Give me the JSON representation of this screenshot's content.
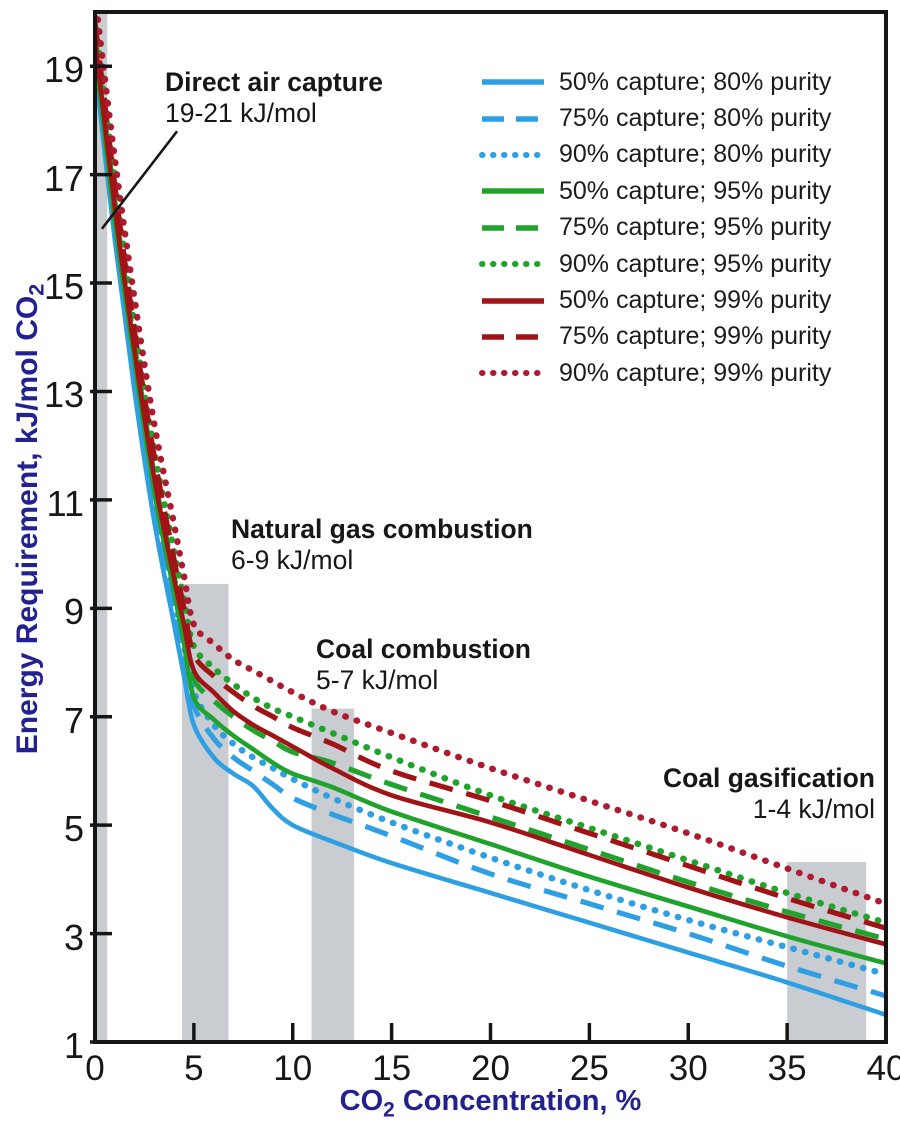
{
  "axes": {
    "x_title_prefix": "CO",
    "x_title_sub": "2",
    "x_title_suffix": " Concentration, %",
    "y_title_prefix": "Energy Requirement, kJ/mol CO",
    "y_title_sub": "2",
    "title_color": "#22218f",
    "tick_color": "#171717"
  },
  "annotations": {
    "direct_air": {
      "title": "Direct air capture",
      "range": "19-21 kJ/mol"
    },
    "natural_gas": {
      "title": "Natural gas combustion",
      "range": "6-9 kJ/mol"
    },
    "coal_combustion": {
      "title": "Coal combustion",
      "range": "5-7 kJ/mol"
    },
    "coal_gasification": {
      "title": "Coal gasification",
      "range": "1-4 kJ/mol"
    }
  },
  "chart_data": {
    "type": "line",
    "xlabel": "CO2 Concentration, %",
    "ylabel": "Energy Requirement, kJ/mol CO2",
    "xlim": [
      0,
      40
    ],
    "ylim": [
      1,
      20
    ],
    "x_ticks": [
      0,
      5,
      10,
      15,
      20,
      25,
      30,
      35,
      40
    ],
    "y_ticks": [
      1,
      3,
      5,
      7,
      9,
      11,
      13,
      15,
      17,
      19
    ],
    "grid": false,
    "legend_position": "top-right",
    "band_color": "#c9cdd2",
    "x": [
      0,
      1,
      2,
      3,
      4,
      4.5,
      5,
      6,
      7,
      8,
      9,
      10,
      12,
      15,
      20,
      25,
      30,
      35,
      40
    ],
    "series": [
      {
        "name": "50% capture; 80% purity",
        "color": "#2f9fe3",
        "style": "solid",
        "values": [
          19.0,
          15.8,
          13.0,
          10.6,
          8.7,
          7.75,
          6.85,
          6.25,
          5.95,
          5.72,
          5.3,
          5.0,
          4.7,
          4.3,
          3.75,
          3.2,
          2.65,
          2.1,
          1.5
        ]
      },
      {
        "name": "75% capture; 80% purity",
        "color": "#2f9fe3",
        "style": "dashed",
        "values": [
          19.2,
          16.0,
          13.25,
          10.85,
          8.95,
          8.05,
          7.2,
          6.6,
          6.25,
          6.0,
          5.75,
          5.5,
          5.2,
          4.8,
          4.1,
          3.55,
          3.0,
          2.4,
          1.85
        ]
      },
      {
        "name": "90% capture; 80% purity",
        "color": "#2f9fe3",
        "style": "dotted",
        "values": [
          19.4,
          16.2,
          13.5,
          11.1,
          9.2,
          8.3,
          7.45,
          6.85,
          6.5,
          6.25,
          6.05,
          5.85,
          5.5,
          5.05,
          4.4,
          3.8,
          3.25,
          2.75,
          2.25
        ]
      },
      {
        "name": "50% capture; 95% purity",
        "color": "#1fa32c",
        "style": "solid",
        "values": [
          19.3,
          16.15,
          13.55,
          11.15,
          9.3,
          8.35,
          7.35,
          6.95,
          6.65,
          6.4,
          6.15,
          5.95,
          5.7,
          5.25,
          4.65,
          4.05,
          3.5,
          2.95,
          2.45
        ]
      },
      {
        "name": "75% capture; 95% purity",
        "color": "#1fa32c",
        "style": "dashed",
        "values": [
          19.6,
          16.5,
          13.85,
          11.45,
          9.6,
          8.65,
          7.7,
          7.3,
          7.0,
          6.75,
          6.55,
          6.35,
          6.15,
          5.75,
          5.15,
          4.55,
          3.95,
          3.4,
          2.9
        ]
      },
      {
        "name": "90% capture; 95% purity",
        "color": "#1fa32c",
        "style": "dotted",
        "values": [
          19.9,
          16.9,
          14.2,
          11.9,
          10.05,
          9.15,
          8.3,
          7.9,
          7.6,
          7.35,
          7.15,
          7.0,
          6.7,
          6.25,
          5.55,
          4.95,
          4.35,
          3.75,
          3.2
        ]
      },
      {
        "name": "50% capture; 99% purity",
        "color": "#a01316",
        "style": "solid",
        "values": [
          19.5,
          16.4,
          13.75,
          11.4,
          9.55,
          8.7,
          7.85,
          7.45,
          7.1,
          6.85,
          6.65,
          6.45,
          6.05,
          5.55,
          5.05,
          4.45,
          3.85,
          3.3,
          2.8
        ]
      },
      {
        "name": "75% capture; 99% purity",
        "color": "#a01316",
        "style": "dashed",
        "values": [
          19.8,
          16.8,
          14.1,
          11.8,
          9.9,
          9.0,
          8.15,
          7.75,
          7.45,
          7.2,
          7.0,
          6.8,
          6.5,
          6.0,
          5.45,
          4.85,
          4.25,
          3.65,
          3.1
        ]
      },
      {
        "name": "90% capture; 99% purity",
        "color": "#ae1b30",
        "style": "dotted",
        "values": [
          20.3,
          17.3,
          14.7,
          12.4,
          10.55,
          9.6,
          8.7,
          8.35,
          8.05,
          7.85,
          7.65,
          7.45,
          7.1,
          6.7,
          6.05,
          5.45,
          4.85,
          4.2,
          3.55
        ]
      }
    ],
    "bands": [
      {
        "name": "Direct air capture",
        "x0": 0.1,
        "x1": 0.62,
        "top": 20.0
      },
      {
        "name": "Natural gas combustion",
        "x0": 4.4,
        "x1": 6.75,
        "top": 9.45
      },
      {
        "name": "Coal combustion",
        "x0": 10.95,
        "x1": 13.1,
        "top": 7.15
      },
      {
        "name": "Coal gasification",
        "x0": 35.0,
        "x1": 39.0,
        "top": 4.32
      }
    ],
    "callout": {
      "x1": 4.15,
      "y1": 17.8,
      "x2": 0.35,
      "y2": 16.0
    }
  }
}
